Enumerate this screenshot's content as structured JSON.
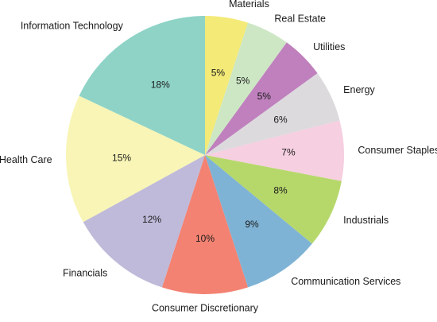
{
  "chart_data": {
    "type": "pie",
    "start_angle_deg": 90,
    "direction": "clockwise",
    "slices": [
      {
        "label": "Materials",
        "value": 5,
        "value_label": "5%",
        "color": "#f3ea78"
      },
      {
        "label": "Real Estate",
        "value": 5,
        "value_label": "5%",
        "color": "#cde7c4"
      },
      {
        "label": "Utilities",
        "value": 5,
        "value_label": "5%",
        "color": "#bf80bd"
      },
      {
        "label": "Energy",
        "value": 6,
        "value_label": "6%",
        "color": "#dcdadd"
      },
      {
        "label": "Consumer Staples",
        "value": 7,
        "value_label": "7%",
        "color": "#f6cfe0"
      },
      {
        "label": "Industrials",
        "value": 8,
        "value_label": "8%",
        "color": "#b6d86b"
      },
      {
        "label": "Communication Services",
        "value": 9,
        "value_label": "9%",
        "color": "#7fb3d5"
      },
      {
        "label": "Consumer Discretionary",
        "value": 10,
        "value_label": "10%",
        "color": "#f38272"
      },
      {
        "label": "Financials",
        "value": 12,
        "value_label": "12%",
        "color": "#bfbad9"
      },
      {
        "label": "Health Care",
        "value": 15,
        "value_label": "15%",
        "color": "#f8f5b6"
      },
      {
        "label": "Information Technology",
        "value": 18,
        "value_label": "18%",
        "color": "#8fd3c7"
      }
    ]
  }
}
